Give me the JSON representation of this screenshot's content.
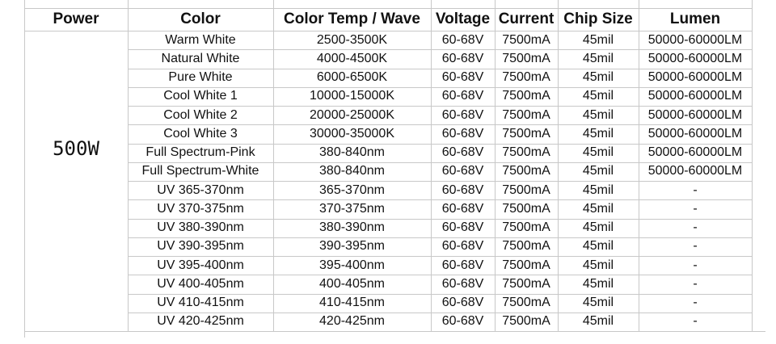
{
  "table": {
    "header": [
      "Power",
      "Color",
      "Color Temp / Wave",
      "Voltage",
      "Current",
      "Chip Size",
      "Lumen"
    ],
    "power": "500W",
    "rows": [
      [
        "Warm White",
        "2500-3500K",
        "60-68V",
        "7500mA",
        "45mil",
        "50000-60000LM"
      ],
      [
        "Natural White",
        "4000-4500K",
        "60-68V",
        "7500mA",
        "45mil",
        "50000-60000LM"
      ],
      [
        "Pure White",
        "6000-6500K",
        "60-68V",
        "7500mA",
        "45mil",
        "50000-60000LM"
      ],
      [
        "Cool White 1",
        "10000-15000K",
        "60-68V",
        "7500mA",
        "45mil",
        "50000-60000LM"
      ],
      [
        "Cool White 2",
        "20000-25000K",
        "60-68V",
        "7500mA",
        "45mil",
        "50000-60000LM"
      ],
      [
        "Cool White 3",
        "30000-35000K",
        "60-68V",
        "7500mA",
        "45mil",
        "50000-60000LM"
      ],
      [
        "Full Spectrum-Pink",
        "380-840nm",
        "60-68V",
        "7500mA",
        "45mil",
        "50000-60000LM"
      ],
      [
        "Full Spectrum-White",
        "380-840nm",
        "60-68V",
        "7500mA",
        "45mil",
        "50000-60000LM"
      ],
      [
        "UV 365-370nm",
        "365-370nm",
        "60-68V",
        "7500mA",
        "45mil",
        "-"
      ],
      [
        "UV 370-375nm",
        "370-375nm",
        "60-68V",
        "7500mA",
        "45mil",
        "-"
      ],
      [
        "UV 380-390nm",
        "380-390nm",
        "60-68V",
        "7500mA",
        "45mil",
        "-"
      ],
      [
        "UV 390-395nm",
        "390-395nm",
        "60-68V",
        "7500mA",
        "45mil",
        "-"
      ],
      [
        "UV 395-400nm",
        "395-400nm",
        "60-68V",
        "7500mA",
        "45mil",
        "-"
      ],
      [
        "UV 400-405nm",
        "400-405nm",
        "60-68V",
        "7500mA",
        "45mil",
        "-"
      ],
      [
        "UV 410-415nm",
        "410-415nm",
        "60-68V",
        "7500mA",
        "45mil",
        "-"
      ],
      [
        "UV 420-425nm",
        "420-425nm",
        "60-68V",
        "7500mA",
        "45mil",
        "-"
      ]
    ]
  }
}
